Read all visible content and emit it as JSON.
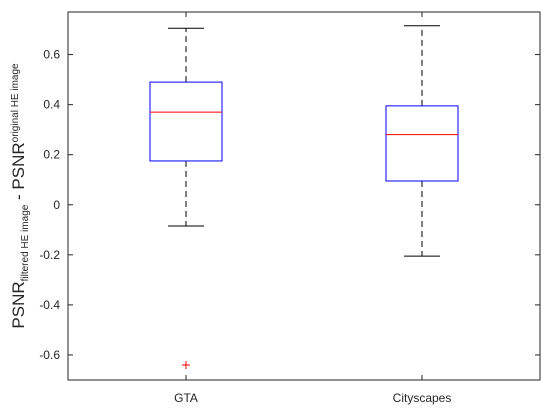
{
  "chart_data": {
    "type": "box",
    "categories": [
      "GTA",
      "Cityscapes"
    ],
    "boxes": [
      {
        "name": "GTA",
        "whisker_low": -0.085,
        "q1": 0.175,
        "median": 0.37,
        "q3": 0.49,
        "whisker_high": 0.705,
        "outliers": [
          -0.64
        ]
      },
      {
        "name": "Cityscapes",
        "whisker_low": -0.205,
        "q1": 0.095,
        "median": 0.28,
        "q3": 0.395,
        "whisker_high": 0.715,
        "outliers": []
      }
    ],
    "ylim": [
      -0.7,
      0.77
    ],
    "yticks": [
      -0.6,
      -0.4,
      -0.2,
      0,
      0.2,
      0.4,
      0.6
    ],
    "ytick_labels": [
      "-0.6",
      "-0.4",
      "-0.2",
      "0",
      "0.2",
      "0.4",
      "0.6"
    ],
    "ylabel": {
      "base1": "PSNR",
      "sub1": "filtered HE image",
      "operator": " - ",
      "base2": "PSNR",
      "sub2": "original HE image"
    },
    "grid": false,
    "colors": {
      "box": "#0000ff",
      "median": "#ff0000",
      "whisker": "#000000",
      "outlier": "#ff0000",
      "axis": "#262626"
    }
  }
}
